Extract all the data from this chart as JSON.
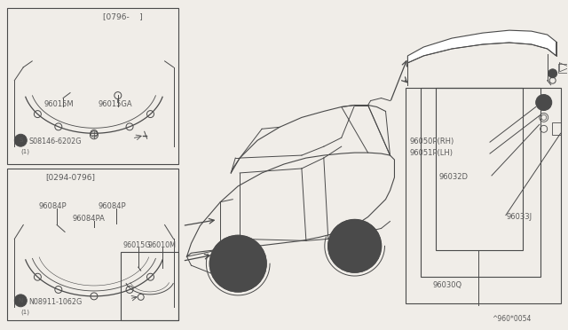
{
  "bg_color": "#f0ede8",
  "line_color": "#4a4a4a",
  "text_color": "#5a5a5a",
  "title_text": "^960*0054",
  "box1_label": "[0796-    ]",
  "box2_label": "[0294-0796]",
  "label_96015M": "96015M",
  "label_96015GA": "96015GA",
  "label_S08146": "S08146-6202G",
  "label_paren1": "(1)",
  "label_96084P_1": "96084P",
  "label_96084P_2": "96084P",
  "label_96084PA": "96084PA",
  "label_96015G": "96015G",
  "label_96010M": "96010M",
  "label_N08911": "N08911-1062G",
  "label_96050P": "96050P(RH)",
  "label_96051P": "96051P(LH)",
  "label_96032D": "96032D",
  "label_96033J": "96033J",
  "label_96030Q": "96030Q"
}
